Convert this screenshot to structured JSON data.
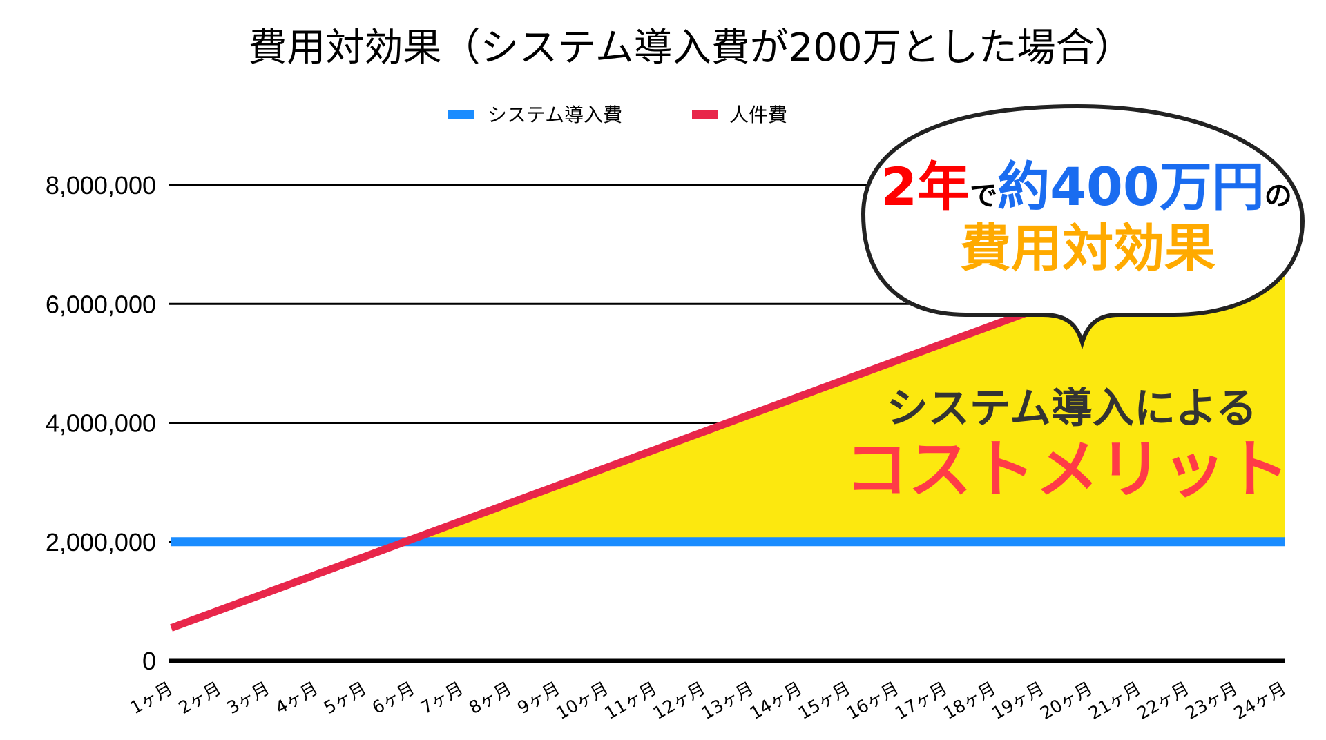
{
  "chart_data": {
    "type": "line",
    "title": "費用対効果（システム導入費が200万とした場合）",
    "xlabel": "",
    "ylabel": "",
    "categories": [
      "1ヶ月",
      "2ヶ月",
      "3ヶ月",
      "4ヶ月",
      "5ヶ月",
      "6ヶ月",
      "7ヶ月",
      "8ヶ月",
      "9ヶ月",
      "10ヶ月",
      "11ヶ月",
      "12ヶ月",
      "13ヶ月",
      "14ヶ月",
      "15ヶ月",
      "16ヶ月",
      "17ヶ月",
      "18ヶ月",
      "19ヶ月",
      "20ヶ月",
      "21ヶ月",
      "22ヶ月",
      "23ヶ月",
      "24ヶ月"
    ],
    "ylim": [
      0,
      8000000
    ],
    "yticks": [
      0,
      2000000,
      4000000,
      6000000,
      8000000
    ],
    "ytick_labels": [
      "0",
      "2,000,000",
      "4,000,000",
      "6,000,000",
      "8,000,000"
    ],
    "grid": true,
    "legend_position": "top",
    "series": [
      {
        "name": "システム導入費",
        "color": "#1a8cff",
        "values": [
          2000000,
          2000000,
          2000000,
          2000000,
          2000000,
          2000000,
          2000000,
          2000000,
          2000000,
          2000000,
          2000000,
          2000000,
          2000000,
          2000000,
          2000000,
          2000000,
          2000000,
          2000000,
          2000000,
          2000000,
          2000000,
          2000000,
          2000000,
          2000000
        ]
      },
      {
        "name": "人件費",
        "color": "#e8264a",
        "values": [
          550000,
          850000,
          1150000,
          1450000,
          1750000,
          2050000,
          2350000,
          2650000,
          2950000,
          3250000,
          3550000,
          3850000,
          4150000,
          4450000,
          4750000,
          5050000,
          5350000,
          5650000,
          5950000,
          6250000,
          6550000,
          6850000,
          7150000,
          7450000
        ]
      }
    ],
    "fill_between_color": "#fce80f",
    "annotations": {
      "bubble": {
        "line1": [
          {
            "text": "2年",
            "color": "#ff0000"
          },
          {
            "text": "で",
            "color": "#000000"
          },
          {
            "text": "約400万円",
            "color": "#1a6cf0"
          },
          {
            "text": "の",
            "color": "#000000"
          }
        ],
        "line2": {
          "text": "費用対効果",
          "color": "#ffaa00"
        }
      },
      "area_label_1": {
        "text": "システム導入による",
        "color": "#333333"
      },
      "area_label_2": {
        "text": "コストメリット",
        "color": "#ff3b47"
      }
    }
  }
}
